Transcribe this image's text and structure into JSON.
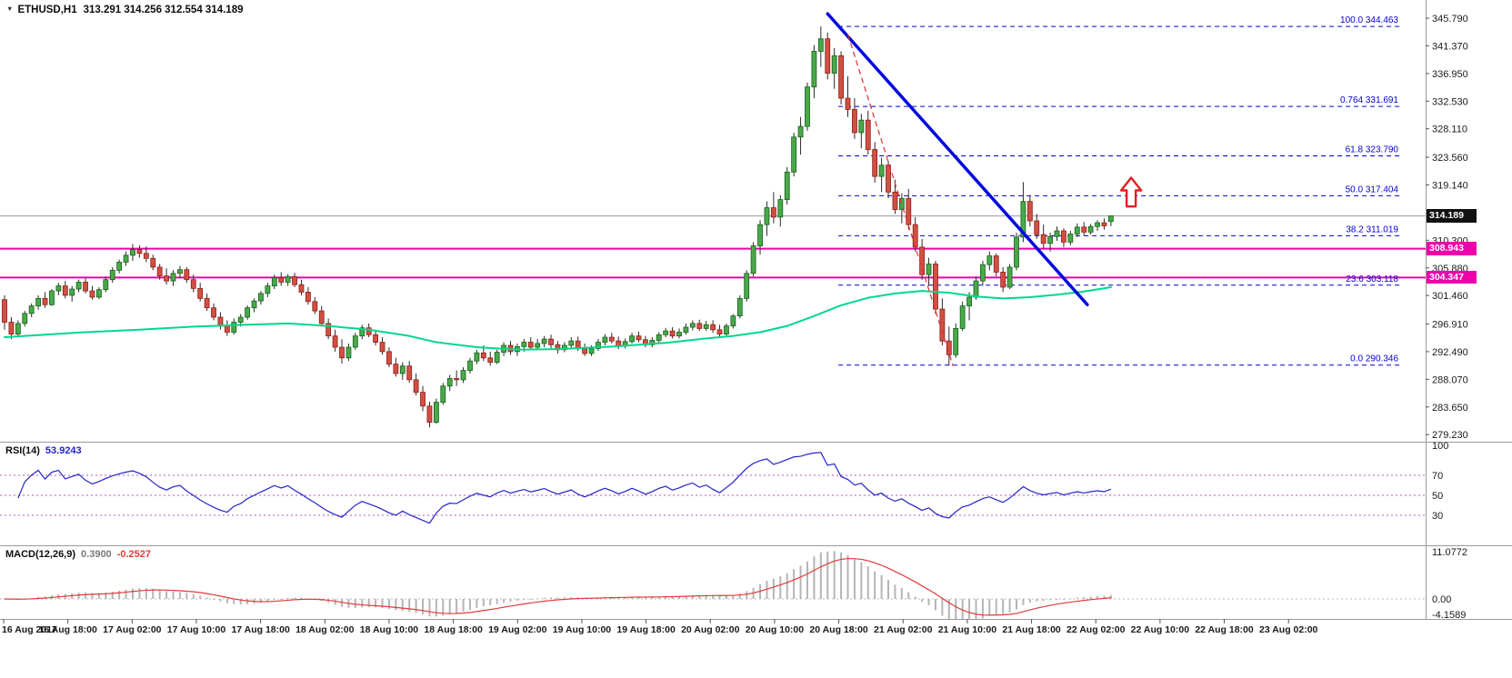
{
  "window": {
    "marker": "▼",
    "symbol": "ETHUSD,H1",
    "ohlc": "313.291 314.256 312.554 314.189"
  },
  "price_axis": {
    "ticks": [
      "345.790",
      "341.370",
      "336.950",
      "332.530",
      "328.110",
      "323.560",
      "319.140",
      "310.300",
      "305.880",
      "301.460",
      "296.910",
      "292.490",
      "288.070",
      "283.650",
      "279.230"
    ],
    "current_price": 314.189,
    "current_price_tag": "314.189"
  },
  "time_axis": {
    "labels": [
      "16 Aug 2017",
      "16 Aug 18:00",
      "17 Aug 02:00",
      "17 Aug 10:00",
      "17 Aug 18:00",
      "18 Aug 02:00",
      "18 Aug 10:00",
      "18 Aug 18:00",
      "19 Aug 02:00",
      "19 Aug 10:00",
      "19 Aug 18:00",
      "20 Aug 02:00",
      "20 Aug 10:00",
      "20 Aug 18:00",
      "21 Aug 02:00",
      "21 Aug 10:00",
      "21 Aug 18:00",
      "22 Aug 02:00",
      "22 Aug 10:00",
      "22 Aug 18:00",
      "23 Aug 02:00"
    ]
  },
  "indicators": {
    "rsi": {
      "label": "RSI(14)",
      "value": "53.9243",
      "levels": [
        70,
        50,
        30
      ],
      "axis_ticks": [
        "100",
        "70",
        "50",
        "30"
      ]
    },
    "macd": {
      "label": "MACD(12,26,9)",
      "value_main": "0.3900",
      "value_signal": "-0.2527",
      "axis_ticks": [
        "11.0772",
        "0.00",
        "-4.1589"
      ]
    }
  },
  "overlays": {
    "fibonacci": [
      {
        "label": "100.0",
        "price": "344.463"
      },
      {
        "label": "0.764",
        "price": "331.691"
      },
      {
        "label": "61.8",
        "price": "323.790"
      },
      {
        "label": "50.0",
        "price": "317.404"
      },
      {
        "label": "38.2",
        "price": "311.019"
      },
      {
        "label": "23.6",
        "price": "303.118"
      },
      {
        "label": "0.0",
        "price": "290.346"
      }
    ],
    "horizontal_lines": [
      {
        "price": 308.943,
        "tag": "308.943"
      },
      {
        "price": 304.347,
        "tag": "304.347"
      }
    ],
    "trendline_blue": {
      "from_t": 122,
      "from_price": 346.5,
      "to_t": 160.5,
      "to_price": 300.0
    },
    "measure_line_red": {
      "from_t": 125,
      "from_price": 343.2,
      "to_t": 140.6,
      "to_price": 290.2
    },
    "arrow_up": {
      "t": 167,
      "price_tip": 320.3,
      "price_base": 315.7
    }
  },
  "colors": {
    "up": "#4aa84a",
    "up_border": "#14621a",
    "down": "#d24f44",
    "down_border": "#8d1f16",
    "wick": "#2b2b2b",
    "ma": "#00d88a",
    "trend": "#0008dd",
    "fib": "#0000cc",
    "magenta": "#ee00aa",
    "measure": "#e03030",
    "arrow": "#e02020",
    "rsi_line": "#2424c8",
    "rsi_level": "#c050c0",
    "hist": "#b5b5b5",
    "macd_signal": "#e23b3b",
    "current_line": "#9a9a9a",
    "tag_bg": "#111111",
    "separator": "#9b9b9b"
  },
  "chart_data": {
    "type": "candlestick",
    "symbol": "ETHUSD",
    "timeframe": "H1",
    "title": "ETHUSD,H1",
    "ylim": [
      279.23,
      345.79
    ],
    "x_start_label": "16 Aug 2017",
    "x_end_label": "23 Aug 02:00",
    "candles": [
      [
        300.8,
        301.5,
        296.0,
        297.2
      ],
      [
        297.2,
        298.0,
        294.5,
        295.3
      ],
      [
        295.3,
        297.5,
        294.8,
        297.0
      ],
      [
        297.0,
        299.0,
        296.5,
        298.6
      ],
      [
        298.6,
        300.2,
        298.0,
        299.8
      ],
      [
        299.8,
        301.5,
        299.2,
        301.0
      ],
      [
        301.0,
        302.0,
        299.5,
        300.0
      ],
      [
        300.0,
        302.5,
        299.8,
        302.2
      ],
      [
        302.2,
        303.5,
        301.5,
        303.0
      ],
      [
        303.0,
        303.8,
        301.0,
        301.5
      ],
      [
        301.5,
        303.0,
        300.5,
        302.5
      ],
      [
        302.5,
        304.0,
        302.0,
        303.6
      ],
      [
        303.6,
        304.2,
        301.8,
        302.2
      ],
      [
        302.2,
        303.0,
        300.8,
        301.2
      ],
      [
        301.2,
        302.8,
        300.9,
        302.4
      ],
      [
        302.4,
        304.5,
        302.0,
        304.0
      ],
      [
        304.0,
        306.0,
        303.5,
        305.5
      ],
      [
        305.5,
        307.2,
        305.0,
        306.8
      ],
      [
        306.8,
        308.5,
        306.2,
        307.9
      ],
      [
        307.9,
        309.7,
        307.0,
        308.8
      ],
      [
        308.8,
        309.5,
        307.5,
        308.2
      ],
      [
        308.2,
        309.3,
        306.8,
        307.4
      ],
      [
        307.4,
        308.0,
        305.5,
        306.0
      ],
      [
        306.0,
        306.5,
        304.0,
        304.6
      ],
      [
        304.6,
        305.8,
        303.2,
        303.8
      ],
      [
        303.8,
        305.5,
        303.0,
        305.0
      ],
      [
        305.0,
        306.2,
        304.2,
        305.6
      ],
      [
        305.6,
        306.0,
        303.5,
        304.0
      ],
      [
        304.0,
        304.8,
        302.0,
        302.6
      ],
      [
        302.6,
        303.5,
        300.5,
        301.0
      ],
      [
        301.0,
        301.8,
        299.0,
        299.5
      ],
      [
        299.5,
        300.2,
        297.5,
        298.0
      ],
      [
        298.0,
        298.8,
        296.0,
        296.6
      ],
      [
        296.6,
        297.5,
        295.0,
        295.6
      ],
      [
        295.6,
        297.8,
        295.2,
        297.2
      ],
      [
        297.2,
        298.5,
        296.5,
        298.0
      ],
      [
        298.0,
        299.9,
        297.6,
        299.5
      ],
      [
        299.5,
        301.0,
        298.8,
        300.6
      ],
      [
        300.6,
        302.2,
        300.0,
        301.8
      ],
      [
        301.8,
        303.5,
        301.2,
        303.0
      ],
      [
        303.0,
        304.8,
        302.5,
        304.3
      ],
      [
        304.3,
        305.2,
        303.0,
        303.6
      ],
      [
        303.6,
        304.9,
        303.0,
        304.5
      ],
      [
        304.5,
        305.1,
        302.8,
        303.2
      ],
      [
        303.2,
        304.0,
        301.5,
        302.0
      ],
      [
        302.0,
        302.8,
        300.0,
        300.5
      ],
      [
        300.5,
        301.2,
        298.5,
        299.0
      ],
      [
        299.0,
        299.8,
        296.5,
        297.0
      ],
      [
        297.0,
        297.8,
        294.5,
        295.0
      ],
      [
        295.0,
        296.0,
        292.5,
        293.2
      ],
      [
        293.2,
        294.5,
        290.6,
        291.5
      ],
      [
        291.5,
        293.8,
        291.0,
        293.2
      ],
      [
        293.2,
        295.5,
        292.8,
        295.0
      ],
      [
        295.0,
        296.8,
        294.5,
        296.3
      ],
      [
        296.3,
        297.0,
        294.8,
        295.2
      ],
      [
        295.2,
        296.0,
        293.5,
        294.0
      ],
      [
        294.0,
        294.8,
        292.0,
        292.5
      ],
      [
        292.5,
        293.2,
        290.0,
        290.5
      ],
      [
        290.5,
        291.5,
        288.5,
        289.0
      ],
      [
        289.0,
        290.8,
        288.0,
        290.2
      ],
      [
        290.2,
        291.0,
        287.5,
        288.0
      ],
      [
        288.0,
        289.0,
        285.5,
        286.0
      ],
      [
        286.0,
        287.0,
        283.0,
        283.8
      ],
      [
        283.8,
        284.5,
        280.4,
        281.2
      ],
      [
        281.2,
        285.0,
        281.0,
        284.4
      ],
      [
        284.4,
        287.5,
        284.0,
        287.0
      ],
      [
        287.0,
        288.8,
        286.2,
        288.2
      ],
      [
        288.2,
        289.5,
        287.0,
        288.0
      ],
      [
        288.0,
        290.0,
        287.5,
        289.5
      ],
      [
        289.5,
        291.5,
        289.0,
        291.0
      ],
      [
        291.0,
        292.8,
        290.5,
        292.3
      ],
      [
        292.3,
        293.5,
        291.0,
        291.5
      ],
      [
        291.5,
        292.5,
        290.2,
        290.8
      ],
      [
        290.8,
        292.8,
        290.5,
        292.4
      ],
      [
        292.4,
        294.0,
        291.8,
        293.5
      ],
      [
        293.5,
        294.2,
        292.0,
        292.5
      ],
      [
        292.5,
        293.8,
        291.8,
        293.3
      ],
      [
        293.3,
        294.5,
        292.5,
        294.0
      ],
      [
        294.0,
        294.8,
        292.8,
        293.2
      ],
      [
        293.2,
        294.5,
        292.8,
        293.8
      ],
      [
        293.8,
        295.0,
        293.2,
        294.5
      ],
      [
        294.5,
        295.2,
        293.0,
        293.6
      ],
      [
        293.6,
        294.2,
        292.2,
        292.8
      ],
      [
        292.8,
        294.0,
        292.4,
        293.5
      ],
      [
        293.5,
        294.8,
        293.0,
        294.2
      ],
      [
        294.2,
        294.9,
        292.6,
        293.0
      ],
      [
        293.0,
        293.8,
        291.8,
        292.2
      ],
      [
        292.2,
        293.5,
        291.8,
        293.0
      ],
      [
        293.0,
        294.5,
        292.6,
        294.0
      ],
      [
        294.0,
        295.3,
        293.5,
        294.8
      ],
      [
        294.8,
        295.5,
        293.8,
        294.2
      ],
      [
        294.2,
        294.9,
        292.9,
        293.4
      ],
      [
        293.4,
        294.6,
        293.0,
        294.1
      ],
      [
        294.1,
        295.5,
        293.8,
        295.0
      ],
      [
        295.0,
        295.7,
        294.0,
        294.4
      ],
      [
        294.4,
        295.0,
        293.2,
        293.6
      ],
      [
        293.6,
        294.8,
        293.2,
        294.3
      ],
      [
        294.3,
        295.6,
        293.9,
        295.2
      ],
      [
        295.2,
        296.3,
        294.8,
        295.8
      ],
      [
        295.8,
        296.4,
        294.6,
        295.0
      ],
      [
        295.0,
        296.2,
        294.6,
        295.6
      ],
      [
        295.6,
        297.0,
        295.2,
        296.4
      ],
      [
        296.4,
        297.5,
        295.9,
        297.0
      ],
      [
        297.0,
        297.6,
        295.8,
        296.2
      ],
      [
        296.2,
        297.4,
        295.8,
        296.8
      ],
      [
        296.8,
        297.5,
        295.5,
        296.0
      ],
      [
        296.0,
        296.8,
        294.8,
        295.3
      ],
      [
        295.3,
        297.0,
        295.0,
        296.6
      ],
      [
        296.6,
        298.5,
        296.2,
        298.2
      ],
      [
        298.2,
        301.5,
        297.8,
        301.0
      ],
      [
        301.0,
        305.5,
        300.5,
        305.0
      ],
      [
        305.0,
        310.0,
        304.5,
        309.4
      ],
      [
        309.4,
        313.5,
        308.0,
        312.8
      ],
      [
        312.8,
        316.5,
        311.0,
        315.5
      ],
      [
        315.5,
        318.0,
        313.0,
        314.0
      ],
      [
        314.0,
        317.5,
        312.5,
        316.8
      ],
      [
        316.8,
        322.0,
        316.0,
        321.2
      ],
      [
        321.2,
        327.5,
        320.5,
        326.8
      ],
      [
        326.8,
        330.0,
        324.0,
        328.5
      ],
      [
        328.5,
        335.5,
        327.8,
        334.8
      ],
      [
        334.8,
        341.5,
        333.0,
        340.5
      ],
      [
        340.5,
        344.46,
        338.0,
        342.5
      ],
      [
        342.5,
        343.5,
        336.0,
        337.0
      ],
      [
        337.0,
        341.0,
        334.5,
        339.8
      ],
      [
        339.8,
        340.5,
        332.0,
        333.0
      ],
      [
        333.0,
        336.5,
        330.0,
        331.2
      ],
      [
        331.2,
        333.0,
        326.5,
        327.5
      ],
      [
        327.5,
        330.5,
        325.0,
        329.5
      ],
      [
        329.5,
        331.0,
        324.0,
        324.8
      ],
      [
        324.8,
        326.0,
        319.5,
        320.5
      ],
      [
        320.5,
        323.5,
        318.0,
        322.3
      ],
      [
        322.3,
        323.0,
        317.0,
        318.0
      ],
      [
        318.0,
        320.0,
        314.5,
        315.2
      ],
      [
        315.2,
        317.8,
        313.0,
        317.0
      ],
      [
        317.0,
        318.5,
        312.0,
        312.8
      ],
      [
        312.8,
        314.0,
        308.5,
        309.2
      ],
      [
        309.2,
        310.5,
        304.0,
        304.8
      ],
      [
        304.8,
        307.5,
        303.0,
        306.5
      ],
      [
        306.5,
        307.0,
        298.5,
        299.3
      ],
      [
        299.3,
        301.0,
        293.5,
        294.2
      ],
      [
        294.2,
        296.5,
        290.35,
        292.0
      ],
      [
        292.0,
        297.0,
        291.5,
        296.2
      ],
      [
        296.2,
        300.5,
        295.8,
        299.8
      ],
      [
        299.8,
        302.0,
        297.5,
        301.2
      ],
      [
        301.2,
        304.5,
        300.8,
        303.8
      ],
      [
        303.8,
        307.0,
        303.0,
        306.4
      ],
      [
        306.4,
        308.5,
        305.5,
        307.8
      ],
      [
        307.8,
        308.2,
        304.5,
        305.2
      ],
      [
        305.2,
        306.0,
        302.0,
        302.8
      ],
      [
        302.8,
        306.5,
        302.5,
        306.0
      ],
      [
        306.0,
        311.5,
        305.5,
        310.8
      ],
      [
        310.8,
        319.6,
        310.0,
        316.5
      ],
      [
        316.5,
        317.5,
        312.5,
        313.4
      ],
      [
        313.4,
        314.5,
        310.5,
        311.2
      ],
      [
        311.2,
        312.8,
        309.0,
        309.8
      ],
      [
        309.8,
        311.5,
        308.5,
        310.9
      ],
      [
        310.9,
        312.5,
        310.2,
        311.8
      ],
      [
        311.8,
        312.2,
        309.2,
        310.0
      ],
      [
        310.0,
        311.8,
        309.5,
        311.3
      ],
      [
        311.3,
        313.0,
        310.8,
        312.4
      ],
      [
        312.4,
        313.2,
        311.0,
        311.6
      ],
      [
        311.6,
        312.9,
        311.2,
        312.5
      ],
      [
        312.5,
        313.5,
        311.8,
        313.1
      ],
      [
        313.1,
        313.8,
        312.0,
        312.6
      ],
      [
        313.291,
        314.256,
        312.554,
        314.189
      ]
    ],
    "ma_green": [
      [
        0,
        294.8
      ],
      [
        6,
        295.2
      ],
      [
        12,
        295.6
      ],
      [
        20,
        296.0
      ],
      [
        28,
        296.5
      ],
      [
        36,
        296.8
      ],
      [
        42,
        297.0
      ],
      [
        48,
        296.6
      ],
      [
        54,
        296.0
      ],
      [
        60,
        295.0
      ],
      [
        64,
        294.0
      ],
      [
        70,
        293.2
      ],
      [
        76,
        292.8
      ],
      [
        82,
        292.9
      ],
      [
        90,
        293.3
      ],
      [
        98,
        293.9
      ],
      [
        104,
        294.6
      ],
      [
        108,
        295.0
      ],
      [
        112,
        295.6
      ],
      [
        116,
        296.6
      ],
      [
        120,
        298.2
      ],
      [
        124,
        299.9
      ],
      [
        128,
        301.1
      ],
      [
        132,
        301.8
      ],
      [
        136,
        302.2
      ],
      [
        140,
        301.9
      ],
      [
        144,
        301.3
      ],
      [
        148,
        301.0
      ],
      [
        152,
        301.2
      ],
      [
        156,
        301.6
      ],
      [
        160,
        302.1
      ],
      [
        164,
        302.8
      ]
    ]
  }
}
